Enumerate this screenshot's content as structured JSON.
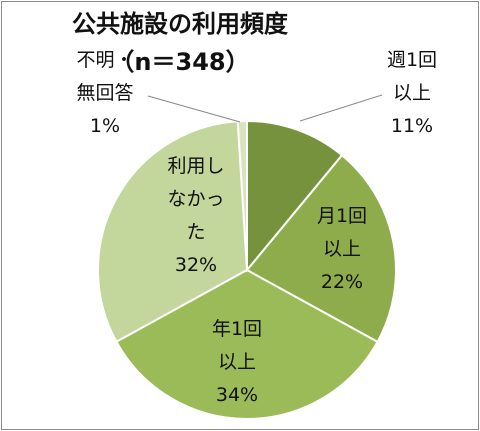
{
  "chart_data": {
    "type": "pie",
    "title": "公共施設の利用頻度",
    "subtitle": "（n＝348）",
    "categories": [
      "週1回\n以上",
      "月1回\n以上",
      "年1回\n以上",
      "利用し\nなかっ\nた",
      "不明・\n無回答"
    ],
    "values": [
      11,
      22,
      34,
      32,
      1
    ],
    "value_labels": [
      "11%",
      "22%",
      "34%",
      "32%",
      "1%"
    ],
    "colors": [
      "#76923c",
      "#8fac4c",
      "#9bbb59",
      "#c3d69b",
      "#d7e4bd"
    ]
  }
}
